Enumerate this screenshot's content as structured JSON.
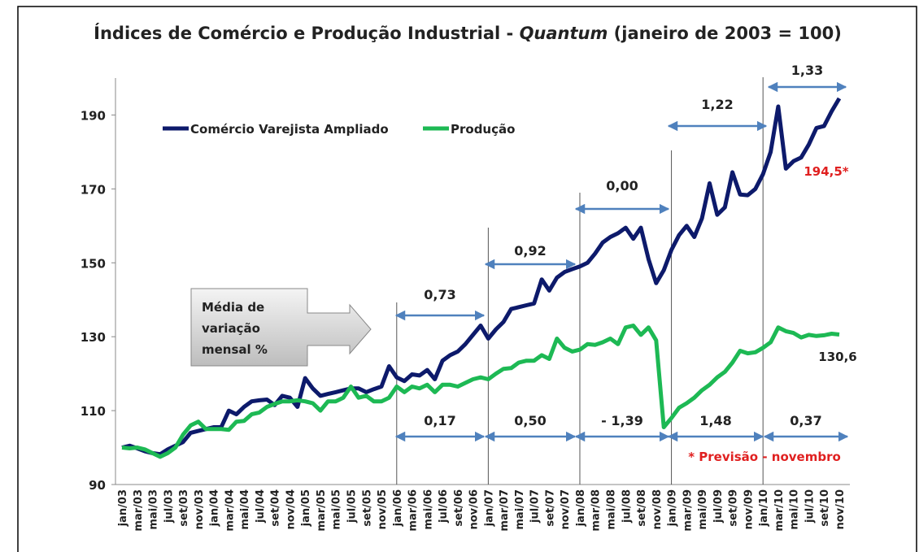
{
  "chart_data": {
    "type": "line",
    "title": [
      "Índices de Comércio e Produção Industrial - ",
      "Quantum",
      " (janeiro de 2003 = 100)"
    ],
    "categories": [
      "jan/03",
      null,
      "mar/03",
      null,
      "mai/03",
      null,
      "jul/03",
      null,
      "set/03",
      null,
      "nov/03",
      null,
      "jan/04",
      null,
      "mar/04",
      null,
      "mai/04",
      null,
      "jul/04",
      null,
      "set/04",
      null,
      "nov/04",
      null,
      "jan/05",
      null,
      "mar/05",
      null,
      "mai/05",
      null,
      "jul/05",
      null,
      "set/05",
      null,
      "nov/05",
      null,
      "jan/06",
      null,
      "mar/06",
      null,
      "mai/06",
      null,
      "jul/06",
      null,
      "set/06",
      null,
      "nov/06",
      null,
      "jan/07",
      null,
      "mar/07",
      null,
      "mai/07",
      null,
      "jul/07",
      null,
      "set/07",
      null,
      "nov/07",
      null,
      "jan/08",
      null,
      "mar/08",
      null,
      "mai/08",
      null,
      "jul/08",
      null,
      "set/08",
      null,
      "nov/08",
      null,
      "jan/09",
      null,
      "mar/09",
      null,
      "mai/09",
      null,
      "jul/09",
      null,
      "set/09",
      null,
      "nov/09",
      null,
      "jan/10",
      null,
      "mar/10",
      null,
      "mai/10",
      null,
      "jul/10",
      null,
      "set/10",
      null,
      "nov/10"
    ],
    "series": [
      {
        "name": "Comércio Varejista Ampliado",
        "color": "#0d1a6b",
        "values": [
          100,
          100.5,
          99.8,
          99,
          98.5,
          98.2,
          99.5,
          100.5,
          101.5,
          104,
          104.5,
          105,
          105.5,
          105.5,
          110,
          109,
          111,
          112.5,
          112.8,
          113,
          111.5,
          114,
          113.5,
          111,
          118.8,
          116,
          114,
          114.5,
          115,
          115.5,
          116,
          116,
          115,
          115.8,
          116.5,
          122,
          119,
          118,
          119.8,
          119.5,
          121,
          118.5,
          123.5,
          125,
          126,
          128,
          130.5,
          133,
          129.5,
          132,
          134,
          137.5,
          138,
          138.5,
          139,
          145.5,
          142.5,
          146,
          147.5,
          148.3,
          149,
          150,
          152.5,
          155.5,
          157,
          158,
          159.5,
          156.5,
          159.5,
          151,
          144.5,
          148,
          153.5,
          157.5,
          160,
          157,
          162,
          171.5,
          163,
          165,
          174.5,
          168.5,
          168.3,
          170,
          174,
          180,
          192.3,
          175.5,
          177.5,
          178.5,
          182,
          186.5,
          187,
          191,
          194.5
        ]
      },
      {
        "name": "Produção",
        "color": "#1db954",
        "values": [
          100,
          99.8,
          100,
          99.5,
          98.5,
          97.5,
          98.5,
          100,
          103.5,
          106,
          107,
          105,
          105,
          105,
          104.8,
          107,
          107.2,
          109,
          109.5,
          111,
          111.8,
          112.5,
          112.5,
          112.8,
          112.5,
          112,
          110,
          112.5,
          112.5,
          113.5,
          116.5,
          113.5,
          114,
          112.5,
          112.5,
          113.5,
          116.5,
          115,
          116.5,
          116,
          117,
          115,
          117,
          117,
          116.5,
          117.5,
          118.5,
          119,
          118.5,
          120,
          121.3,
          121.5,
          123,
          123.5,
          123.5,
          125,
          124,
          129.5,
          127,
          126,
          126.5,
          128,
          127.8,
          128.5,
          129.5,
          128,
          132.5,
          133,
          130.5,
          132.5,
          129,
          105.5,
          108,
          110.8,
          112,
          113.5,
          115.5,
          117,
          119,
          120.5,
          123,
          126.2,
          125.5,
          125.8,
          127,
          128.5,
          132.5,
          131.5,
          131,
          129.8,
          130.5,
          130.2,
          130.4,
          130.8,
          130.6
        ]
      }
    ],
    "ylim": [
      90,
      200
    ],
    "yticks": [
      90,
      110,
      130,
      150,
      170,
      190
    ],
    "grid": false,
    "legend": "top-left",
    "annotations": {
      "top": [
        "0,73",
        "0,92",
        "0,00",
        "1,22",
        "1,33"
      ],
      "bottom": [
        "0,17",
        "0,50",
        "- 1,39",
        "1,48",
        "0,37"
      ],
      "last_commerce": "194,5*",
      "last_production": "130,6",
      "note": "* Previsão - novembro",
      "box": [
        "Média de",
        "variação",
        "mensal %"
      ]
    }
  }
}
